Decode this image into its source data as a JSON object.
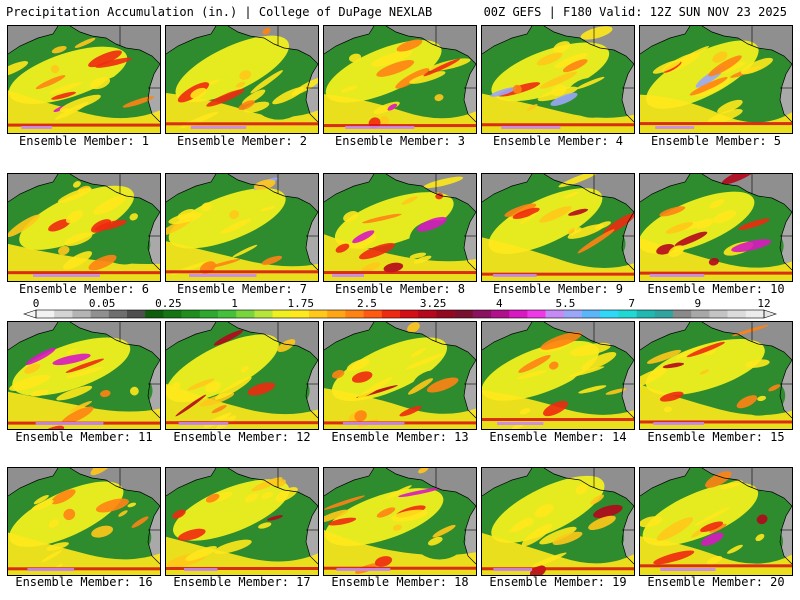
{
  "header": {
    "left_title": "Precipitation Accumulation (in.) | College of DuPage NEXLAB",
    "right_title": "00Z GEFS | F180 Valid: 12Z SUN NOV 23 2025"
  },
  "colorbar": {
    "labels": [
      "0",
      "0.05",
      "0.25",
      "1",
      "1.75",
      "2.5",
      "3.25",
      "4",
      "5.5",
      "7",
      "9",
      "12"
    ],
    "colors": [
      "#f2f2f2",
      "#d4d4d4",
      "#b4b4b4",
      "#909090",
      "#6e6e6e",
      "#4e4e4e",
      "#0d5d0d",
      "#157515",
      "#1f8e1f",
      "#2fa82f",
      "#45c03a",
      "#78d53e",
      "#b6e43a",
      "#f0f020",
      "#ffe81c",
      "#ffc81a",
      "#ffa617",
      "#ff8314",
      "#ff5a12",
      "#ee2a10",
      "#d40f14",
      "#b4081c",
      "#920820",
      "#7a1030",
      "#8a1060",
      "#b0108c",
      "#d818c0",
      "#ee38e8",
      "#c68af4",
      "#9aa6f8",
      "#5ab6fa",
      "#30d8f8",
      "#20d8d4",
      "#20b8b0",
      "#32a4a0",
      "#8a8a8a",
      "#a8a8a8",
      "#c4c4c4",
      "#dcdcdc",
      "#ececec"
    ]
  },
  "map_colors": {
    "ocean": "#2e8b2e",
    "land": "#8f8f8f",
    "border": "#000000"
  },
  "members": [
    {
      "label": "Ensemble Member: 1"
    },
    {
      "label": "Ensemble Member: 2"
    },
    {
      "label": "Ensemble Member: 3"
    },
    {
      "label": "Ensemble Member: 4"
    },
    {
      "label": "Ensemble Member: 5"
    },
    {
      "label": "Ensemble Member: 6"
    },
    {
      "label": "Ensemble Member: 7"
    },
    {
      "label": "Ensemble Member: 8"
    },
    {
      "label": "Ensemble Member: 9"
    },
    {
      "label": "Ensemble Member: 10"
    },
    {
      "label": "Ensemble Member: 11"
    },
    {
      "label": "Ensemble Member: 12"
    },
    {
      "label": "Ensemble Member: 13"
    },
    {
      "label": "Ensemble Member: 14"
    },
    {
      "label": "Ensemble Member: 15"
    },
    {
      "label": "Ensemble Member: 16"
    },
    {
      "label": "Ensemble Member: 17"
    },
    {
      "label": "Ensemble Member: 18"
    },
    {
      "label": "Ensemble Member: 19"
    },
    {
      "label": "Ensemble Member: 20"
    }
  ]
}
